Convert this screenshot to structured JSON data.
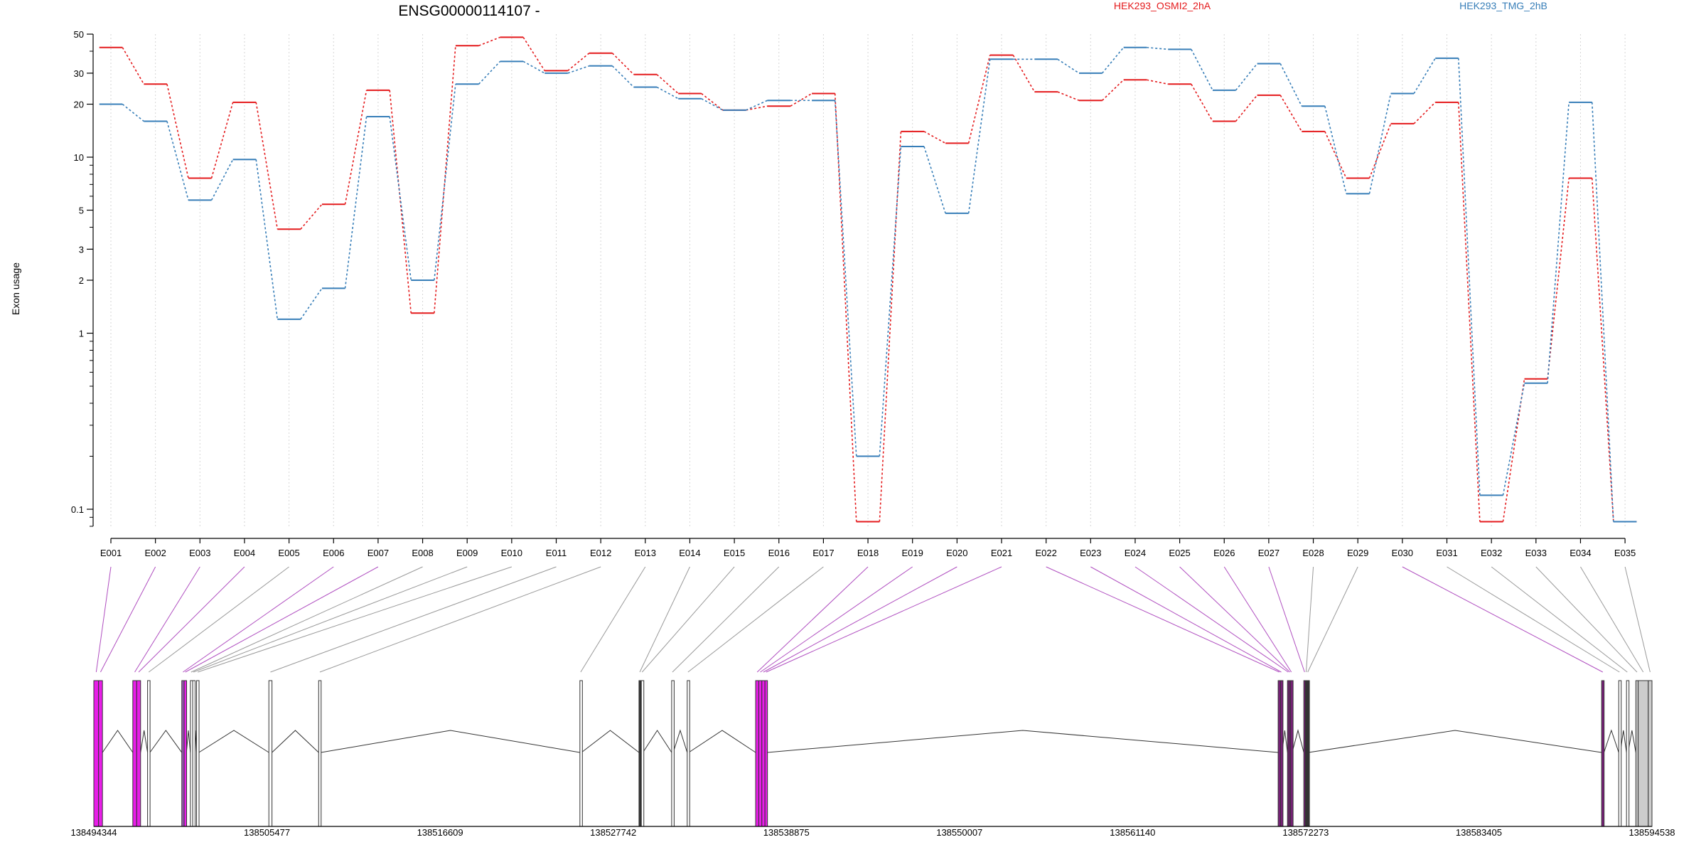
{
  "chart_data": {
    "type": "line",
    "title": "ENSG00000114107 -",
    "ylabel": "Exon usage",
    "y_scale": "log",
    "ylim": [
      0.08,
      50
    ],
    "y_ticks": [
      0.1,
      1,
      2,
      3,
      5,
      10,
      20,
      30,
      50
    ],
    "y_tick_labels": [
      "0.1",
      "1",
      "2",
      "3",
      "5",
      "10",
      "20",
      "30",
      "50"
    ],
    "grid": "vertical dotted at each exon",
    "legend_placement": "top",
    "categories": [
      "E001",
      "E002",
      "E003",
      "E004",
      "E005",
      "E006",
      "E007",
      "E008",
      "E009",
      "E010",
      "E011",
      "E012",
      "E013",
      "E014",
      "E015",
      "E016",
      "E017",
      "E018",
      "E019",
      "E020",
      "E021",
      "E022",
      "E023",
      "E024",
      "E025",
      "E026",
      "E027",
      "E028",
      "E029",
      "E030",
      "E031",
      "E032",
      "E033",
      "E034",
      "E035"
    ],
    "series": [
      {
        "name": "HEK293_OSMI2_2hA",
        "color": "#e41a1c",
        "values": [
          42,
          26,
          7.6,
          20.5,
          3.9,
          5.4,
          24,
          1.3,
          43,
          48,
          31,
          39,
          29.5,
          23,
          18.5,
          19.5,
          23,
          0.085,
          14,
          12,
          38,
          23.5,
          21,
          27.5,
          26,
          16,
          22.5,
          14,
          7.6,
          15.5,
          20.5,
          0.085,
          0.55,
          7.6,
          0.085
        ]
      },
      {
        "name": "HEK293_TMG_2hB",
        "color": "#377eb8",
        "values": [
          20,
          16,
          5.7,
          9.7,
          1.2,
          1.8,
          17,
          2.0,
          26,
          35,
          30,
          33,
          25,
          21.5,
          18.5,
          21,
          21,
          0.2,
          11.5,
          4.8,
          36,
          36,
          30,
          42,
          41,
          24,
          34,
          19.5,
          6.2,
          23,
          36.5,
          0.12,
          0.52,
          20.5,
          0.085
        ]
      }
    ],
    "gene_model": {
      "genomic_ticks": [
        "138494344",
        "138505477",
        "138516609",
        "138527742",
        "138538875",
        "138550007",
        "138561140",
        "138572273",
        "138583405",
        "138594538"
      ],
      "exons": [
        {
          "id": "E001",
          "start": 138494344,
          "end": 138494650,
          "color": "#e81ee8"
        },
        {
          "id": "E002",
          "start": 138494650,
          "end": 138494900,
          "color": "#e81ee8"
        },
        {
          "id": "E003",
          "start": 138496850,
          "end": 138497100,
          "color": "#e81ee8"
        },
        {
          "id": "E004",
          "start": 138497100,
          "end": 138497350,
          "color": "#e81ee8"
        },
        {
          "id": "E005",
          "start": 138497800,
          "end": 138497950,
          "color": "#ffffff"
        },
        {
          "id": "E006",
          "start": 138500000,
          "end": 138500150,
          "color": "#9b59b6"
        },
        {
          "id": "E007",
          "start": 138500150,
          "end": 138500300,
          "color": "#e81ee8"
        },
        {
          "id": "E008",
          "start": 138500550,
          "end": 138500650,
          "color": "#ffffff"
        },
        {
          "id": "E009",
          "start": 138500700,
          "end": 138500800,
          "color": "#ffffff"
        },
        {
          "id": "E010",
          "start": 138500950,
          "end": 138501100,
          "color": "#ffffff"
        },
        {
          "id": "E011",
          "start": 138505600,
          "end": 138505800,
          "color": "#ffffff"
        },
        {
          "id": "E012",
          "start": 138508800,
          "end": 138508950,
          "color": "#ffffff"
        },
        {
          "id": "E013",
          "start": 138525600,
          "end": 138525700,
          "color": "#ffffff"
        },
        {
          "id": "E014",
          "start": 138529400,
          "end": 138529500,
          "color": "#333333"
        },
        {
          "id": "E015",
          "start": 138529550,
          "end": 138529650,
          "color": "#ffffff"
        },
        {
          "id": "E016",
          "start": 138531500,
          "end": 138531600,
          "color": "#ffffff"
        },
        {
          "id": "E017",
          "start": 138532500,
          "end": 138532600,
          "color": "#ffffff"
        },
        {
          "id": "E018",
          "start": 138536900,
          "end": 138537100,
          "color": "#e81ee8"
        },
        {
          "id": "E019",
          "start": 138537100,
          "end": 138537300,
          "color": "#e81ee8"
        },
        {
          "id": "E020",
          "start": 138537300,
          "end": 138537500,
          "color": "#e81ee8"
        },
        {
          "id": "E021",
          "start": 138537500,
          "end": 138537650,
          "color": "#e81ee8"
        },
        {
          "id": "E022",
          "start": 138570500,
          "end": 138570650,
          "color": "#7a1f7a"
        },
        {
          "id": "E023",
          "start": 138570650,
          "end": 138570750,
          "color": "#7a1f7a"
        },
        {
          "id": "E024",
          "start": 138571100,
          "end": 138571200,
          "color": "#7a1f7a"
        },
        {
          "id": "E025",
          "start": 138571200,
          "end": 138571300,
          "color": "#7a1f7a"
        },
        {
          "id": "E026",
          "start": 138571300,
          "end": 138571400,
          "color": "#7a1f7a"
        },
        {
          "id": "E027",
          "start": 138572150,
          "end": 138572250,
          "color": "#7a1f7a"
        },
        {
          "id": "E028",
          "start": 138572250,
          "end": 138572350,
          "color": "#333333"
        },
        {
          "id": "E029",
          "start": 138572350,
          "end": 138572450,
          "color": "#333333"
        },
        {
          "id": "E030",
          "start": 138591300,
          "end": 138591450,
          "color": "#7a1f7a"
        },
        {
          "id": "E031",
          "start": 138592400,
          "end": 138592500,
          "color": "#ffffff"
        },
        {
          "id": "E032",
          "start": 138592900,
          "end": 138593000,
          "color": "#ffffff"
        },
        {
          "id": "E033",
          "start": 138593500,
          "end": 138593650,
          "color": "#cccccc"
        },
        {
          "id": "E034",
          "start": 138593650,
          "end": 138594300,
          "color": "#cccccc"
        },
        {
          "id": "E035",
          "start": 138594300,
          "end": 138594538,
          "color": "#cccccc"
        }
      ]
    }
  }
}
